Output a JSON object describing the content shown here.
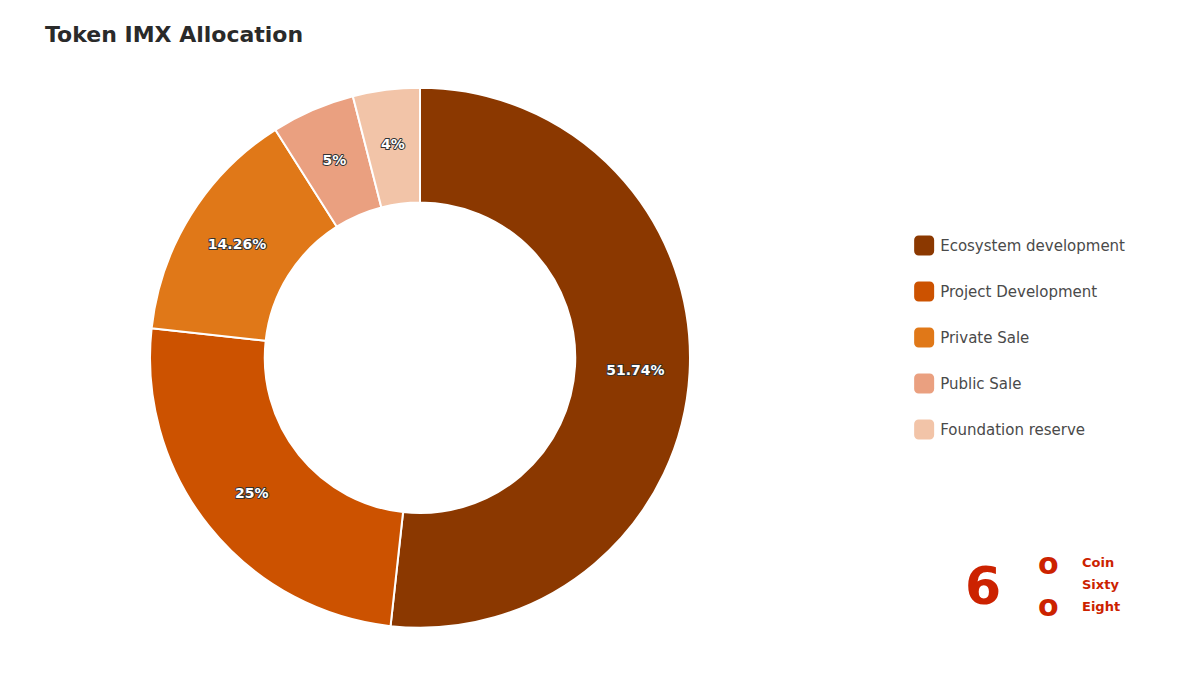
{
  "chart_data": {
    "type": "pie",
    "title": "Token IMX Allocation",
    "categories": [
      "Ecosystem development",
      "Project Development",
      "Private Sale",
      "Public Sale",
      "Foundation reserve"
    ],
    "values": [
      51.74,
      25.0,
      14.26,
      5.0,
      4.0
    ],
    "value_labels": [
      "51.74%",
      "25%",
      "14.26%",
      "5%",
      "4%"
    ],
    "colors": [
      "#8B3800",
      "#CC5200",
      "#E07818",
      "#EAA080",
      "#F2C4A8"
    ],
    "data_labels": true,
    "legend": "right",
    "annotations": [
      "6",
      "o",
      "o",
      "Coin",
      "Sixty",
      "Eight"
    ]
  }
}
